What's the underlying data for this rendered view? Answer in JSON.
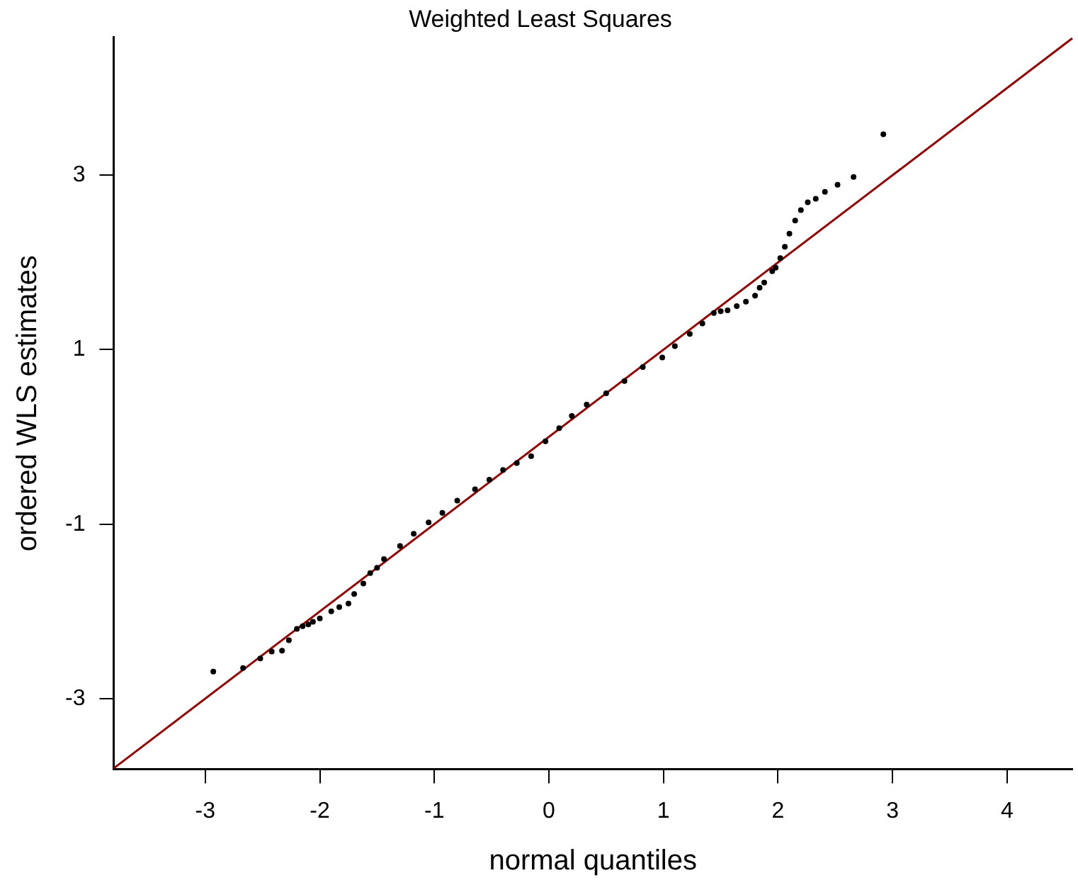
{
  "chart_data": {
    "type": "scatter",
    "title": "Weighted Least Squares",
    "xlabel": "normal quantiles",
    "ylabel": "ordered WLS estimates",
    "xlim": [
      -3.8,
      4.57
    ],
    "xticks": [
      -3,
      -2,
      -1,
      0,
      1,
      2,
      3,
      4
    ],
    "ylim": [
      -3.81,
      4.58
    ],
    "yticks": [
      -3,
      -1,
      1,
      3
    ],
    "grid": false,
    "legend": false,
    "marker": "circle",
    "series": [
      {
        "color": "#000000",
        "x": [
          -2.93,
          -2.67,
          -2.52,
          -2.42,
          -2.33,
          -2.27,
          -2.2,
          -2.15,
          -2.1,
          -2.06,
          -2.0,
          -1.9,
          -1.83,
          -1.75,
          -1.7,
          -1.62,
          -1.56,
          -1.5,
          -1.44,
          -1.3,
          -1.18,
          -1.05,
          -0.93,
          -0.8,
          -0.645,
          -0.52,
          -0.4,
          -0.28,
          -0.155,
          -0.03,
          0.09,
          0.2,
          0.33,
          0.5,
          0.66,
          0.82,
          0.99,
          1.1,
          1.23,
          1.34,
          1.44,
          1.5,
          1.56,
          1.64,
          1.72,
          1.8,
          1.84,
          1.88,
          1.95,
          1.98,
          2.02,
          2.06,
          2.1,
          2.15,
          2.2,
          2.26,
          2.33,
          2.41,
          2.52,
          2.66,
          2.92
        ],
        "values": [
          -2.69,
          -2.65,
          -2.54,
          -2.46,
          -2.45,
          -2.33,
          -2.2,
          -2.17,
          -2.15,
          -2.12,
          -2.08,
          -2.0,
          -1.95,
          -1.91,
          -1.8,
          -1.68,
          -1.56,
          -1.5,
          -1.4,
          -1.25,
          -1.11,
          -0.98,
          -0.87,
          -0.73,
          -0.6,
          -0.49,
          -0.38,
          -0.3,
          -0.22,
          -0.05,
          0.1,
          0.24,
          0.37,
          0.5,
          0.64,
          0.8,
          0.91,
          1.04,
          1.18,
          1.3,
          1.42,
          1.44,
          1.45,
          1.5,
          1.55,
          1.62,
          1.71,
          1.77,
          1.9,
          1.94,
          2.05,
          2.18,
          2.33,
          2.48,
          2.6,
          2.69,
          2.73,
          2.81,
          2.89,
          2.98,
          3.47
        ]
      },
      {
        "type": "line",
        "color": "#8b0000",
        "line_style": "solid",
        "marker": "none",
        "x": [
          -3.8,
          4.57
        ],
        "values": [
          -3.8,
          4.57
        ]
      }
    ]
  }
}
